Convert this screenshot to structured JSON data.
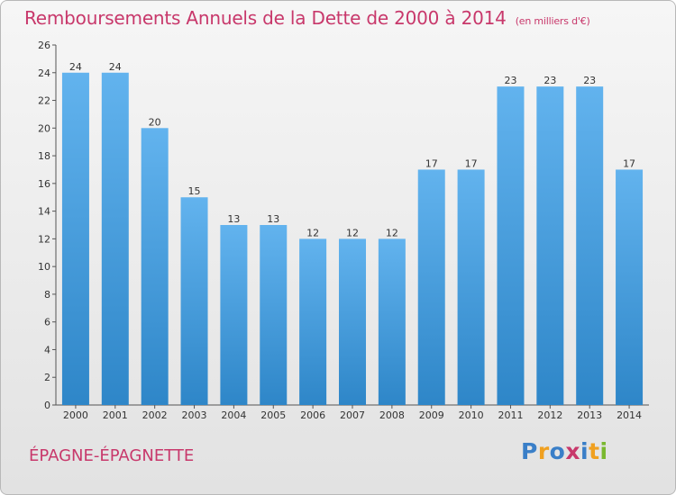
{
  "title": "Remboursements Annuels de la Dette de 2000 à 2014",
  "subtitle": "(en milliers d'€)",
  "place": "ÉPAGNE-ÉPAGNETTE",
  "logo": {
    "text": "Proxiti",
    "letter_colors": [
      "#3a7fc8",
      "#f0a020",
      "#3a7fc8",
      "#c8386b",
      "#3a7fc8",
      "#f0a020",
      "#7ab82f"
    ]
  },
  "colors": {
    "bar_top": "#62b3ee",
    "bar_bottom": "#2e86c8",
    "title": "#c8386b"
  },
  "chart_data": {
    "type": "bar",
    "categories": [
      "2000",
      "2001",
      "2002",
      "2003",
      "2004",
      "2005",
      "2006",
      "2007",
      "2008",
      "2009",
      "2010",
      "2011",
      "2012",
      "2013",
      "2014"
    ],
    "values": [
      24,
      24,
      20,
      15,
      13,
      13,
      12,
      12,
      12,
      17,
      17,
      23,
      23,
      23,
      17
    ],
    "ylim": [
      0,
      26
    ],
    "yticks": [
      0,
      2,
      4,
      6,
      8,
      10,
      12,
      14,
      16,
      18,
      20,
      22,
      24,
      26
    ],
    "grid": false,
    "data_labels": true
  }
}
